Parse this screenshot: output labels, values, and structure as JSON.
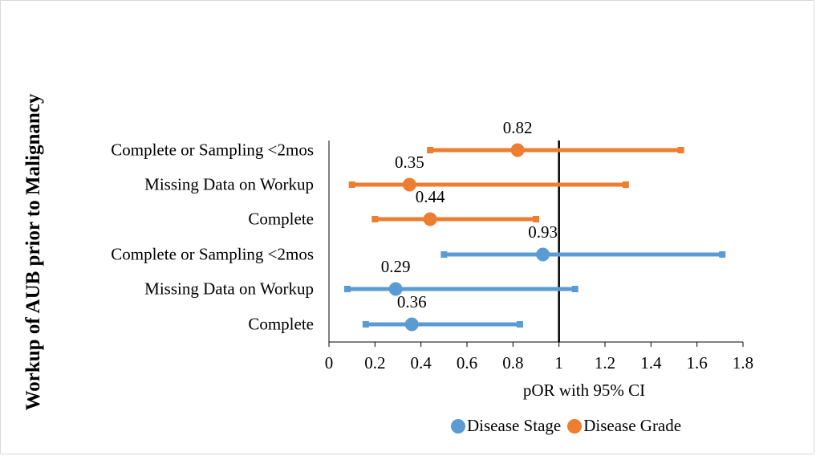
{
  "chart_data": {
    "type": "forest",
    "title": "",
    "xlabel": "pOR with 95% CI",
    "ylabel": "Workup of AUB prior to Malignancy",
    "xlim": [
      0,
      1.8
    ],
    "x_ticks": [
      "0",
      "0.2",
      "0.4",
      "0.6",
      "0.8",
      "1",
      "1.2",
      "1.4",
      "1.6",
      "1.8"
    ],
    "reference_line": 1,
    "legend_position": "bottom",
    "rows": [
      {
        "category": "Complete or Sampling <2mos",
        "series": "Disease Grade",
        "estimate": 0.82,
        "ci_low": 0.44,
        "ci_high": 1.53
      },
      {
        "category": "Missing Data on Workup",
        "series": "Disease Grade",
        "estimate": 0.35,
        "ci_low": 0.1,
        "ci_high": 1.29
      },
      {
        "category": "Complete",
        "series": "Disease Grade",
        "estimate": 0.44,
        "ci_low": 0.2,
        "ci_high": 0.9
      },
      {
        "category": "Complete or Sampling <2mos",
        "series": "Disease Stage",
        "estimate": 0.93,
        "ci_low": 0.5,
        "ci_high": 1.71
      },
      {
        "category": "Missing Data on Workup",
        "series": "Disease Stage",
        "estimate": 0.29,
        "ci_low": 0.08,
        "ci_high": 1.07
      },
      {
        "category": "Complete",
        "series": "Disease Stage",
        "estimate": 0.36,
        "ci_low": 0.16,
        "ci_high": 0.83
      }
    ],
    "legend": [
      {
        "name": "Disease Stage",
        "color": "#5b9bd5"
      },
      {
        "name": "Disease Grade",
        "color": "#ed7d31"
      }
    ]
  }
}
